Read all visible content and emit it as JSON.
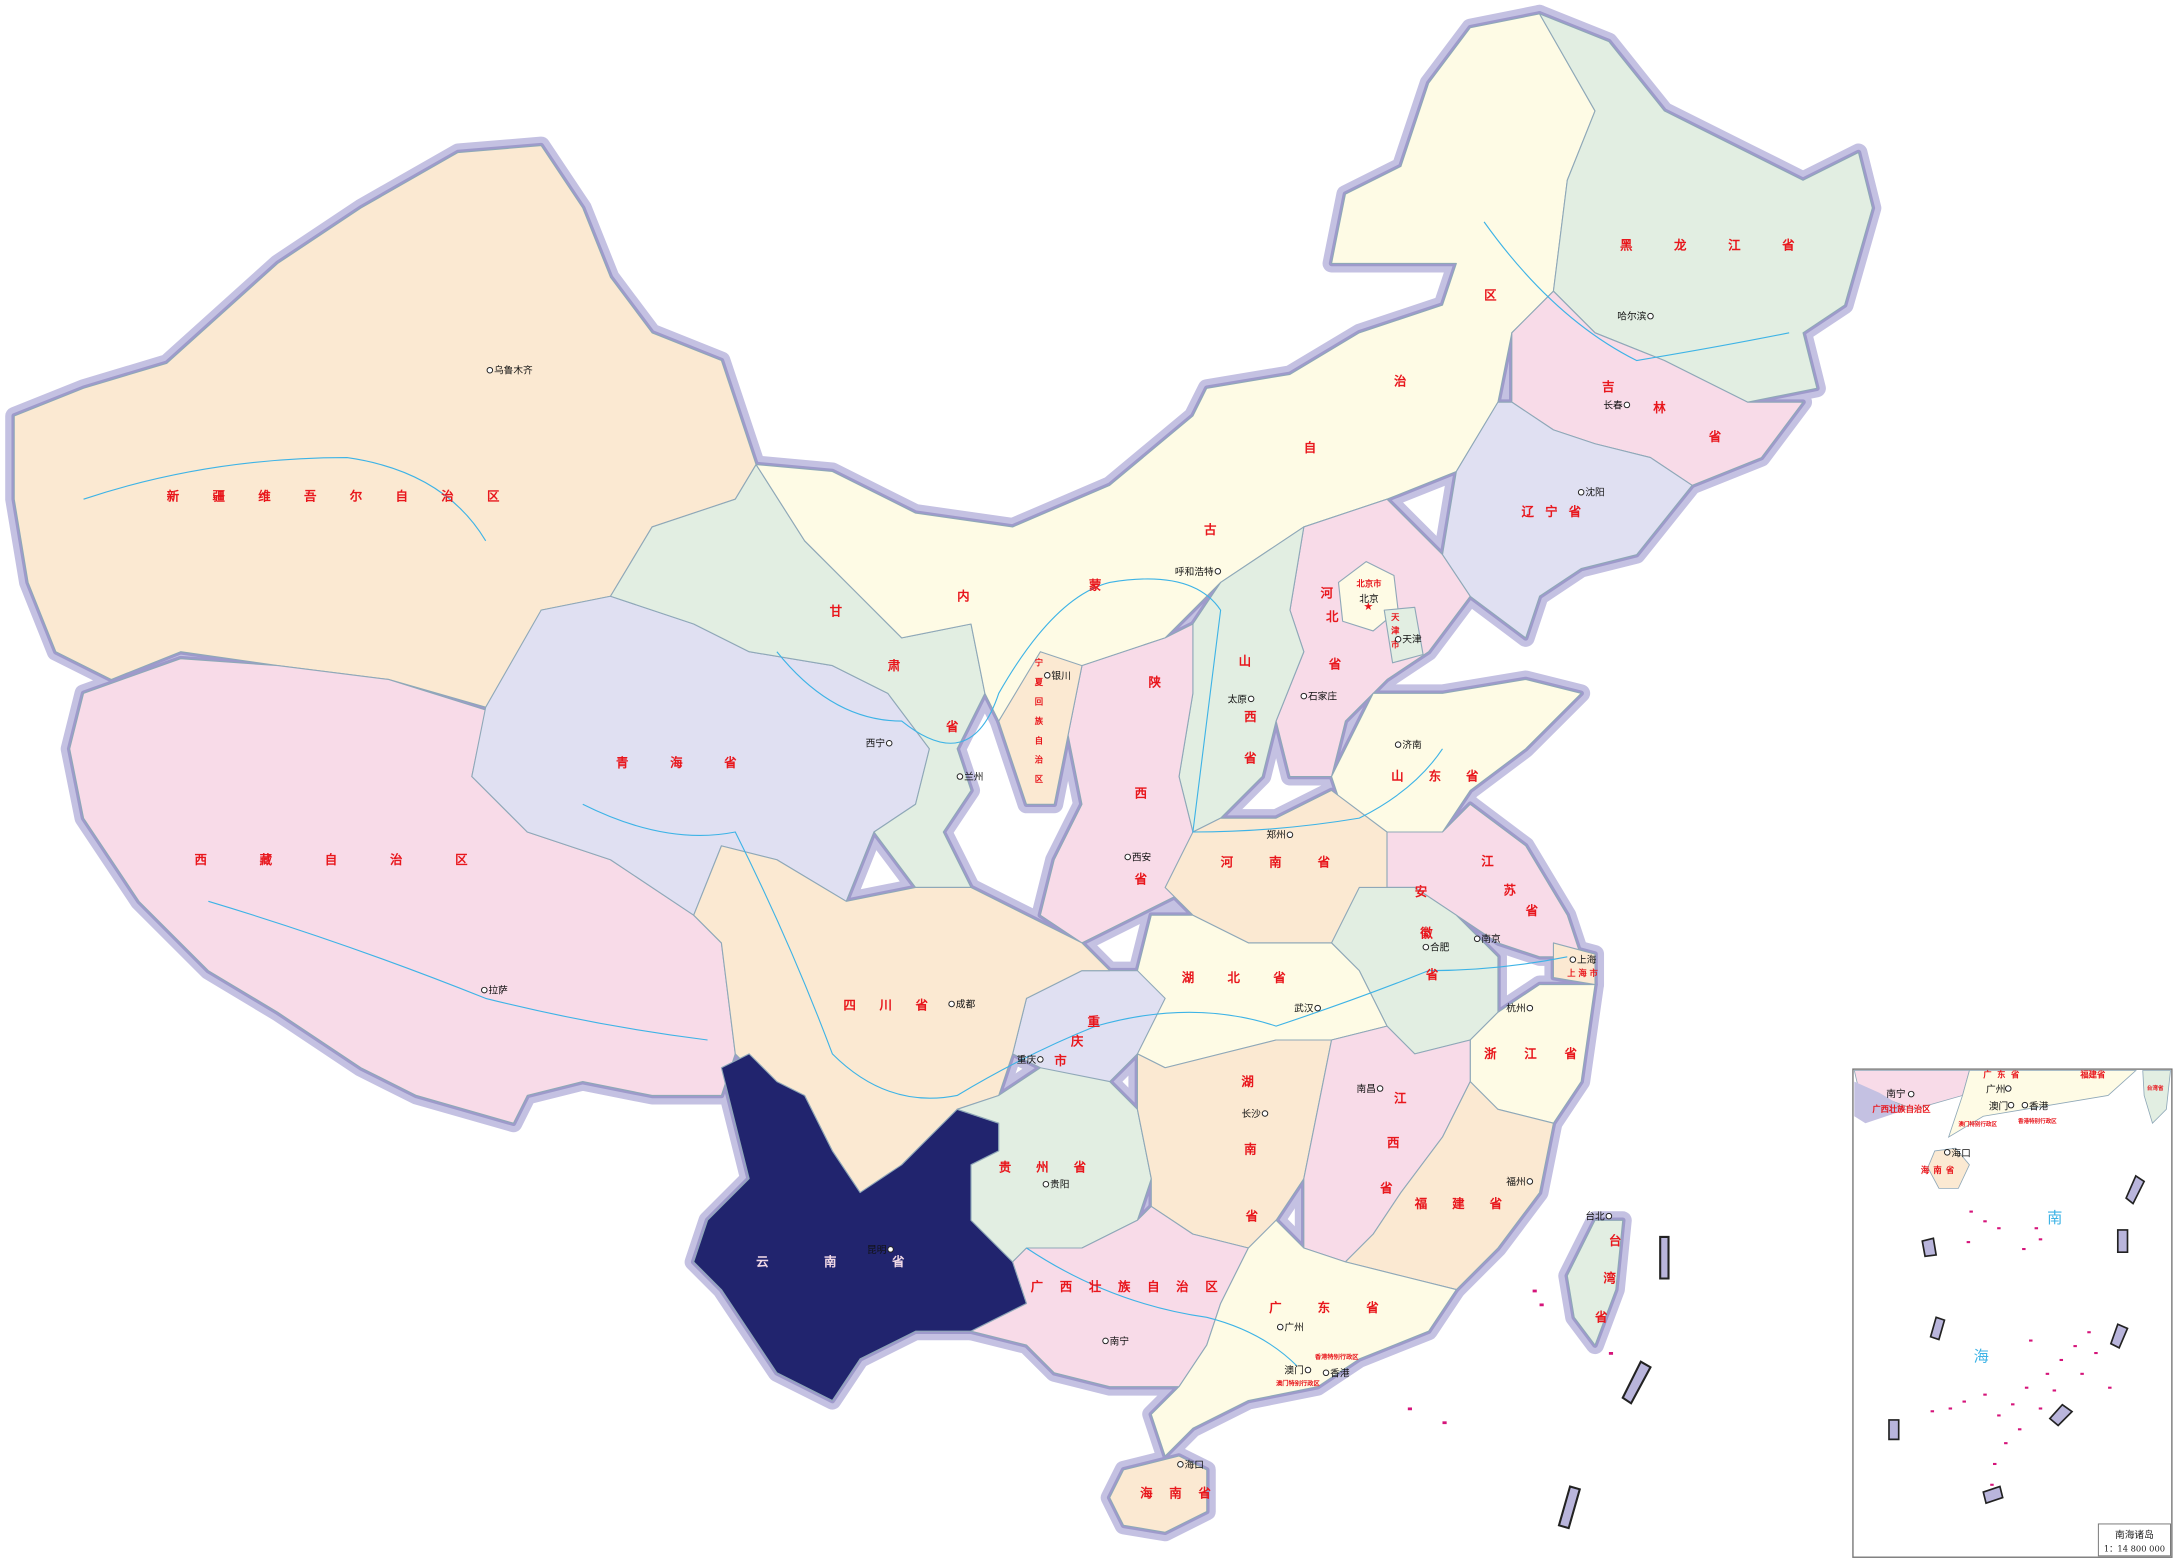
{
  "map": {
    "highlighted_province": "云南省",
    "colors": {
      "highlight": "#21246e",
      "beige": "#fbe9d2",
      "pink": "#f8dbe8",
      "lavender": "#e0e0f2",
      "green": "#e2eee2",
      "cream": "#fefbe5",
      "province_label": "#e8161c",
      "border_halo": "#c4c1e2",
      "river": "#3db3e6"
    },
    "provinces": {
      "xinjiang": "新疆维吾尔自治区",
      "xizang": "西藏自治区",
      "qinghai": "青海省",
      "gansu": "甘肃省",
      "neimenggu": "内蒙古自治区",
      "heilongjiang": "黑龙江省",
      "jilin": "吉林省",
      "liaoning": "辽宁省",
      "beijing": "北京市",
      "tianjin": "天津市",
      "hebei": "河北省",
      "shanxi": "山西省",
      "shaanxi": "陕西省",
      "ningxia": "宁夏回族自治区",
      "shandong": "山东省",
      "henan": "河南省",
      "jiangsu": "江苏省",
      "anhui": "安徽省",
      "shanghai": "上海市",
      "hubei": "湖北省",
      "chongqing": "重庆市",
      "sichuan": "四川省",
      "zhejiang": "浙江省",
      "hunan": "湖南省",
      "jiangxi": "江西省",
      "fujian": "福建省",
      "guizhou": "贵州省",
      "yunnan": "云南省",
      "guangxi": "广西壮族自治区",
      "guangdong": "广东省",
      "hainan": "海南省",
      "taiwan": "台湾省",
      "xianggang": "香港特别行政区",
      "aomen": "澳门特别行政区"
    },
    "cities": {
      "urumqi": "乌鲁木齐",
      "lhasa": "拉萨",
      "xining": "西宁",
      "lanzhou": "兰州",
      "yinchuan": "银川",
      "hohhot": "呼和浩特",
      "taiyuan": "太原",
      "shijiazhuang": "石家庄",
      "beijing": "北京",
      "tianjin": "天津",
      "jinan": "济南",
      "zhengzhou": "郑州",
      "xian": "西安",
      "chengdu": "成都",
      "chongqing": "重庆",
      "guiyang": "贵阳",
      "kunming": "昆明",
      "nanning": "南宁",
      "guangzhou": "广州",
      "changsha": "长沙",
      "wuhan": "武汉",
      "nanchang": "南昌",
      "hefei": "合肥",
      "nanjing": "南京",
      "shanghai": "上海",
      "hangzhou": "杭州",
      "fuzhou": "福州",
      "taipei": "台北",
      "harbin": "哈尔滨",
      "changchun": "长春",
      "shenyang": "沈阳",
      "haikou": "海口",
      "macau": "澳门",
      "hongkong": "香港"
    },
    "inset": {
      "title": "南海诸岛",
      "scale": "1：14 800 000",
      "sea_label_1": "南",
      "sea_label_2": "海",
      "cities": {
        "nanning": "南宁",
        "guangzhou": "广州",
        "macau": "澳门",
        "hongkong": "香港",
        "haikou": "海口"
      },
      "provinces": {
        "guangxi": "广西壮族自治区",
        "guangdong": "广东省",
        "fujian": "福建省",
        "hainan": "海南省",
        "taiwan": "台湾省",
        "xianggang": "香港特别行政区",
        "aomen": "澳门特别行政区"
      }
    }
  }
}
